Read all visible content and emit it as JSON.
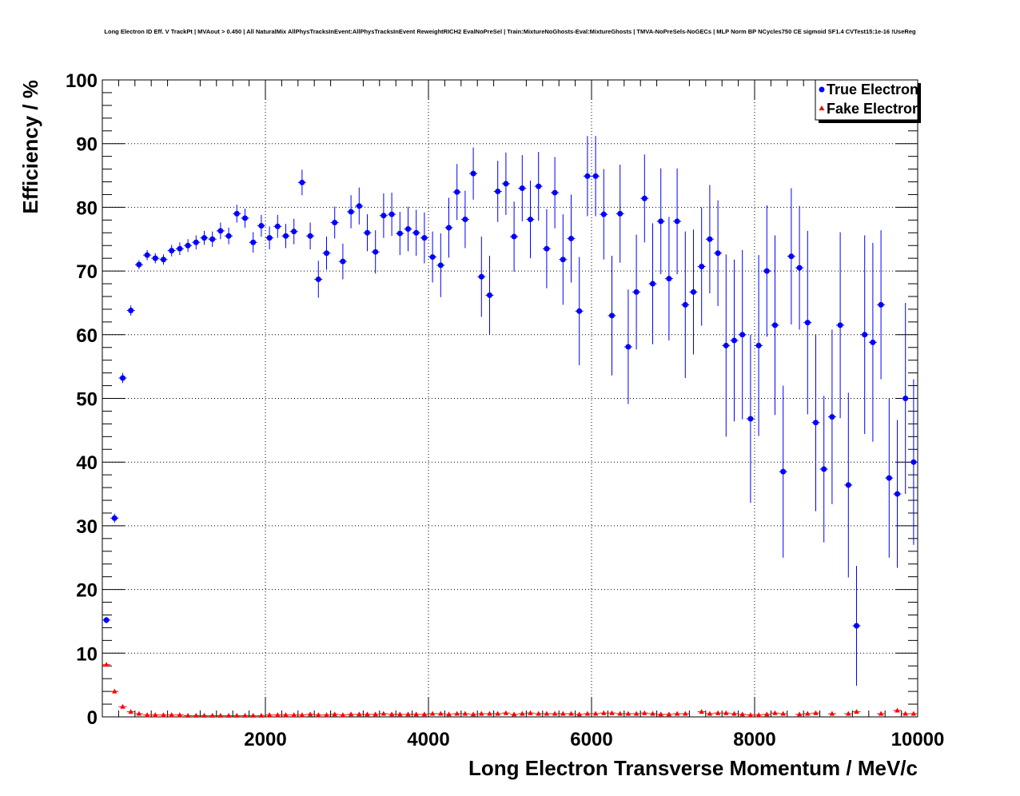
{
  "chart_data": {
    "type": "scatter",
    "title": "Long Electron ID Eff. V TrackPt | MVAout > 0.450 | All NaturalMix AllPhysTracksInEvent:AllPhysTracksInEvent ReweightRICH2 EvalNoPreSel | Train:MixtureNoGhosts-Eval:MixtureGhosts | TMVA-NoPreSels-NoGECs | MLP Norm BP NCycles750 CE sigmoid SF1.4 CVTest15:1e-16 !UseReg",
    "xlabel": "Long Electron Transverse Momentum / MeV/c",
    "ylabel": "Efficiency / %",
    "xlim": [
      0,
      10000
    ],
    "ylim": [
      0,
      100
    ],
    "x_ticks": [
      "2000",
      "4000",
      "6000",
      "8000",
      "10000"
    ],
    "y_ticks": [
      "0",
      "10",
      "20",
      "30",
      "40",
      "50",
      "60",
      "70",
      "80",
      "90",
      "100"
    ],
    "grid": true,
    "legend_position": "top-right",
    "series": [
      {
        "name": "True Electron",
        "color": "#0000ff",
        "marker": "circle",
        "x": [
          50,
          150,
          250,
          350,
          450,
          550,
          650,
          750,
          850,
          950,
          1050,
          1150,
          1250,
          1350,
          1450,
          1550,
          1650,
          1750,
          1850,
          1950,
          2050,
          2150,
          2250,
          2350,
          2450,
          2550,
          2650,
          2750,
          2850,
          2950,
          3050,
          3150,
          3250,
          3350,
          3450,
          3550,
          3650,
          3750,
          3850,
          3950,
          4050,
          4150,
          4250,
          4350,
          4450,
          4550,
          4650,
          4750,
          4850,
          4950,
          5050,
          5150,
          5250,
          5350,
          5450,
          5550,
          5650,
          5750,
          5850,
          5950,
          6050,
          6150,
          6250,
          6350,
          6450,
          6550,
          6650,
          6750,
          6850,
          6950,
          7050,
          7150,
          7250,
          7350,
          7450,
          7550,
          7650,
          7750,
          7850,
          7950,
          8050,
          8150,
          8250,
          8350,
          8450,
          8550,
          8650,
          8750,
          8850,
          8950,
          9050,
          9150,
          9250,
          9350,
          9450,
          9550,
          9650,
          9750,
          9850,
          9950
        ],
        "y": [
          15.2,
          31.2,
          53.2,
          63.8,
          71.0,
          72.5,
          72.0,
          71.8,
          73.2,
          73.5,
          74.0,
          74.5,
          75.2,
          75.0,
          76.3,
          75.5,
          79.0,
          78.3,
          74.5,
          77.1,
          75.2,
          77.0,
          75.5,
          76.2,
          83.9,
          75.5,
          68.7,
          72.8,
          77.6,
          71.5,
          79.3,
          80.2,
          76.0,
          73.0,
          78.7,
          78.9,
          75.9,
          76.6,
          76.0,
          75.2,
          72.2,
          70.9,
          76.8,
          82.4,
          78.1,
          85.3,
          69.1,
          66.2,
          82.5,
          83.7,
          75.4,
          83.0,
          78.1,
          83.3,
          73.5,
          82.3,
          71.8,
          75.1,
          63.7,
          84.9,
          84.9,
          78.9,
          63.0,
          79.0,
          58.1,
          66.7,
          81.4,
          68.0,
          77.8,
          68.8,
          77.8,
          64.7,
          66.7,
          70.7,
          75.0,
          72.8,
          58.3,
          59.1,
          60.0,
          46.8,
          58.3,
          70.0,
          61.5,
          38.5,
          72.3,
          70.5,
          61.9,
          46.2,
          38.9,
          47.1,
          61.5,
          36.4,
          14.3,
          60.0,
          58.8,
          64.7,
          37.5,
          35.0,
          50.0,
          40.0
        ],
        "yerr": [
          0.5,
          0.7,
          0.8,
          0.8,
          0.7,
          0.8,
          0.8,
          0.8,
          0.9,
          1.0,
          1.0,
          1.1,
          1.1,
          1.2,
          1.3,
          1.3,
          1.4,
          1.5,
          1.6,
          1.7,
          1.8,
          1.8,
          1.9,
          2.0,
          2.0,
          2.1,
          2.9,
          2.6,
          2.5,
          2.8,
          2.6,
          2.9,
          2.9,
          3.4,
          3.5,
          3.4,
          3.4,
          3.5,
          3.6,
          4.0,
          4.0,
          5.0,
          4.7,
          4.4,
          4.5,
          4.1,
          6.3,
          6.2,
          4.8,
          4.9,
          5.5,
          5.2,
          6.1,
          5.4,
          6.2,
          5.6,
          7.1,
          6.9,
          8.5,
          6.3,
          6.3,
          7.1,
          9.4,
          7.7,
          9.0,
          9.0,
          6.9,
          9.5,
          8.3,
          9.7,
          8.3,
          11.5,
          9.8,
          9.3,
          8.5,
          8.3,
          14.3,
          12.7,
          13.3,
          13.2,
          14.2,
          10.3,
          14.1,
          13.5,
          10.7,
          9.7,
          14.4,
          13.9,
          11.5,
          13.7,
          14.6,
          14.5,
          9.4,
          15.6,
          15.6,
          11.7,
          12.5,
          11.6,
          15.0,
          13.0
        ]
      },
      {
        "name": "Fake Electron",
        "color": "#ff0000",
        "marker": "triangle",
        "x": [
          50,
          150,
          250,
          350,
          450,
          550,
          650,
          750,
          850,
          950,
          1050,
          1150,
          1250,
          1350,
          1450,
          1550,
          1650,
          1750,
          1850,
          1950,
          2050,
          2150,
          2250,
          2350,
          2450,
          2550,
          2650,
          2750,
          2850,
          2950,
          3050,
          3150,
          3250,
          3350,
          3450,
          3550,
          3650,
          3750,
          3850,
          3950,
          4050,
          4150,
          4250,
          4350,
          4450,
          4550,
          4650,
          4750,
          4850,
          4950,
          5050,
          5150,
          5250,
          5350,
          5450,
          5550,
          5650,
          5750,
          5850,
          5950,
          6050,
          6150,
          6250,
          6350,
          6450,
          6550,
          6650,
          6750,
          6850,
          6950,
          7050,
          7150,
          7350,
          7450,
          7550,
          7650,
          7750,
          7850,
          7950,
          8050,
          8150,
          8250,
          8350,
          8550,
          8650,
          8750,
          8950,
          9150,
          9250,
          9550,
          9750,
          9850,
          9950
        ],
        "y": [
          8.2,
          4.0,
          1.6,
          0.8,
          0.5,
          0.3,
          0.3,
          0.3,
          0.3,
          0.3,
          0.2,
          0.2,
          0.2,
          0.2,
          0.2,
          0.2,
          0.2,
          0.2,
          0.2,
          0.2,
          0.3,
          0.3,
          0.3,
          0.3,
          0.3,
          0.4,
          0.3,
          0.3,
          0.4,
          0.3,
          0.4,
          0.4,
          0.4,
          0.4,
          0.5,
          0.4,
          0.4,
          0.4,
          0.4,
          0.4,
          0.5,
          0.5,
          0.4,
          0.5,
          0.5,
          0.4,
          0.5,
          0.5,
          0.5,
          0.6,
          0.4,
          0.5,
          0.6,
          0.5,
          0.5,
          0.5,
          0.5,
          0.5,
          0.4,
          0.5,
          0.5,
          0.6,
          0.6,
          0.5,
          0.5,
          0.5,
          0.6,
          0.5,
          0.4,
          0.4,
          0.5,
          0.5,
          0.8,
          0.5,
          0.6,
          0.6,
          0.5,
          0.4,
          0.3,
          0.3,
          0.4,
          0.6,
          0.5,
          0.4,
          0.5,
          0.6,
          0.5,
          0.5,
          0.8,
          0.5,
          1.0,
          0.5,
          0.5
        ]
      }
    ]
  }
}
